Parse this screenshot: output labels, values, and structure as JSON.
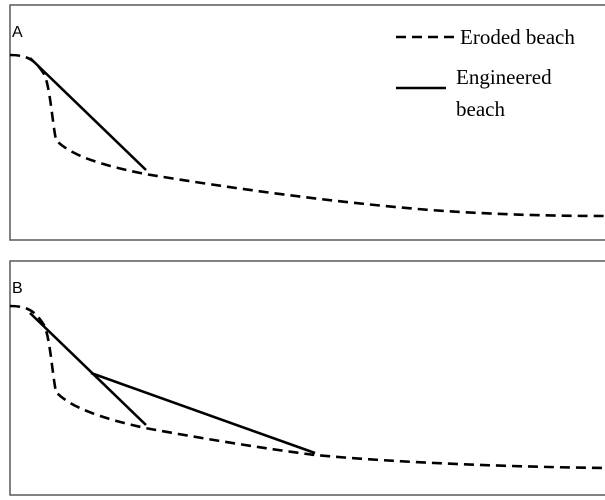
{
  "panels": [
    {
      "label": "A",
      "engineered_segments": 1
    },
    {
      "label": "B",
      "engineered_segments": 2
    }
  ],
  "legend": {
    "eroded_label": "Eroded beach",
    "engineered_label_line1": "Engineered",
    "engineered_label_line2": "beach"
  },
  "colors": {
    "line": "#000000",
    "frame": "#595959",
    "background": "#ffffff"
  }
}
